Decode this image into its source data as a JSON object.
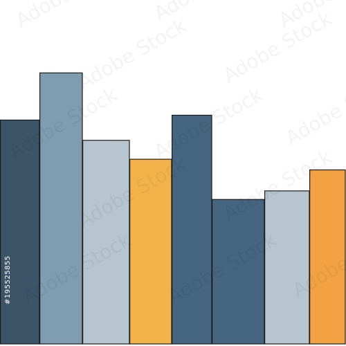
{
  "chart_data": {
    "type": "bar",
    "title": "",
    "xlabel": "",
    "ylabel": "",
    "ylim": [
      0,
      100
    ],
    "grid": false,
    "legend": "none",
    "bars": [
      {
        "value": 65.1,
        "color": "#3c5468"
      },
      {
        "value": 78.8,
        "color": "#7f9cb0"
      },
      {
        "value": 59.2,
        "color": "#b6c5cf"
      },
      {
        "value": 53.7,
        "color": "#f4b24b"
      },
      {
        "value": 66.5,
        "color": "#456580"
      },
      {
        "value": 42.0,
        "color": "#456580"
      },
      {
        "value": 44.5,
        "color": "#b6c5cf"
      },
      {
        "value": 50.6,
        "color": "#f2a242"
      }
    ]
  },
  "watermark": {
    "text": "Adobe Stock",
    "id_label": "#195525855"
  }
}
